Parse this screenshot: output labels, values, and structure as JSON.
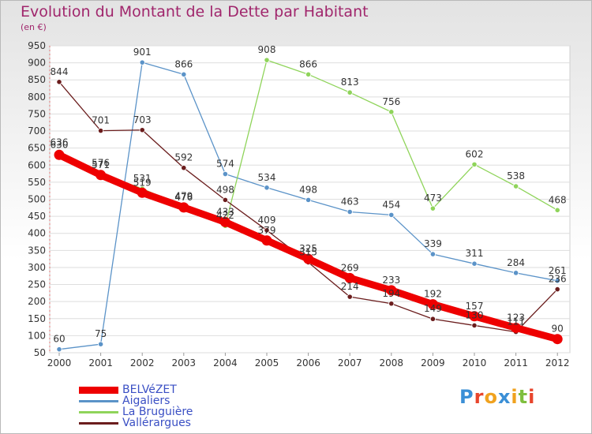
{
  "header": {
    "title": "Evolution du Montant de la Dette par Habitant",
    "subtitle": "(en €)"
  },
  "logo": {
    "text": "Proxiti"
  },
  "colors": {
    "title": "#a0266c",
    "legend_text": "#3a4fc4",
    "BELVéZET": "#ee0000",
    "Aigaliers": "#5b93c8",
    "La Bruguière": "#8fd45a",
    "Vallérargues": "#6b1d1d"
  },
  "chart_data": {
    "type": "line",
    "title": "Evolution du Montant de la Dette par Habitant",
    "subtitle": "(en €)",
    "xlabel": "",
    "ylabel": "",
    "x": [
      "2000",
      "2001",
      "2002",
      "2003",
      "2004",
      "2005",
      "2006",
      "2007",
      "2008",
      "2009",
      "2010",
      "2011",
      "2012"
    ],
    "ylim": [
      50,
      950
    ],
    "yticks": [
      50,
      100,
      150,
      200,
      250,
      300,
      350,
      400,
      450,
      500,
      550,
      600,
      650,
      700,
      750,
      800,
      850,
      900,
      950
    ],
    "grid": "horizontal",
    "legend_position": "bottom-left",
    "series": [
      {
        "name": "BELVéZET",
        "color": "#ee0000",
        "values": [
          630,
          571,
          519,
          476,
          433,
          379,
          325,
          269,
          233,
          192,
          157,
          123,
          90
        ],
        "labels": [
          "630",
          "571",
          "519",
          "476",
          "433",
          "379",
          "325",
          "269",
          "233",
          "192",
          "157",
          "123",
          "90"
        ]
      },
      {
        "name": "Aigaliers",
        "color": "#5b93c8",
        "values": [
          60,
          75,
          901,
          866,
          574,
          534,
          498,
          463,
          454,
          339,
          311,
          284,
          261
        ],
        "labels": [
          "60",
          "75",
          "901",
          "866",
          "574",
          "534",
          "498",
          "463",
          "454",
          "339",
          "311",
          "284",
          "261"
        ]
      },
      {
        "name": "La Bruguière",
        "color": "#8fd45a",
        "values": [
          636,
          576,
          531,
          479,
          422,
          908,
          866,
          813,
          756,
          473,
          602,
          538,
          468
        ],
        "labels": [
          "636",
          "576",
          "531",
          "479",
          "422",
          "908",
          "866",
          "813",
          "756",
          "473",
          "602",
          "538",
          "468"
        ]
      },
      {
        "name": "Vallérargues",
        "color": "#6b1d1d",
        "values": [
          844,
          701,
          703,
          592,
          498,
          409,
          315,
          214,
          194,
          149,
          130,
          111,
          236
        ],
        "labels": [
          "844",
          "701",
          "703",
          "592",
          "498",
          "409",
          "315",
          "214",
          "194",
          "149",
          "130",
          "111",
          "236"
        ]
      }
    ]
  }
}
